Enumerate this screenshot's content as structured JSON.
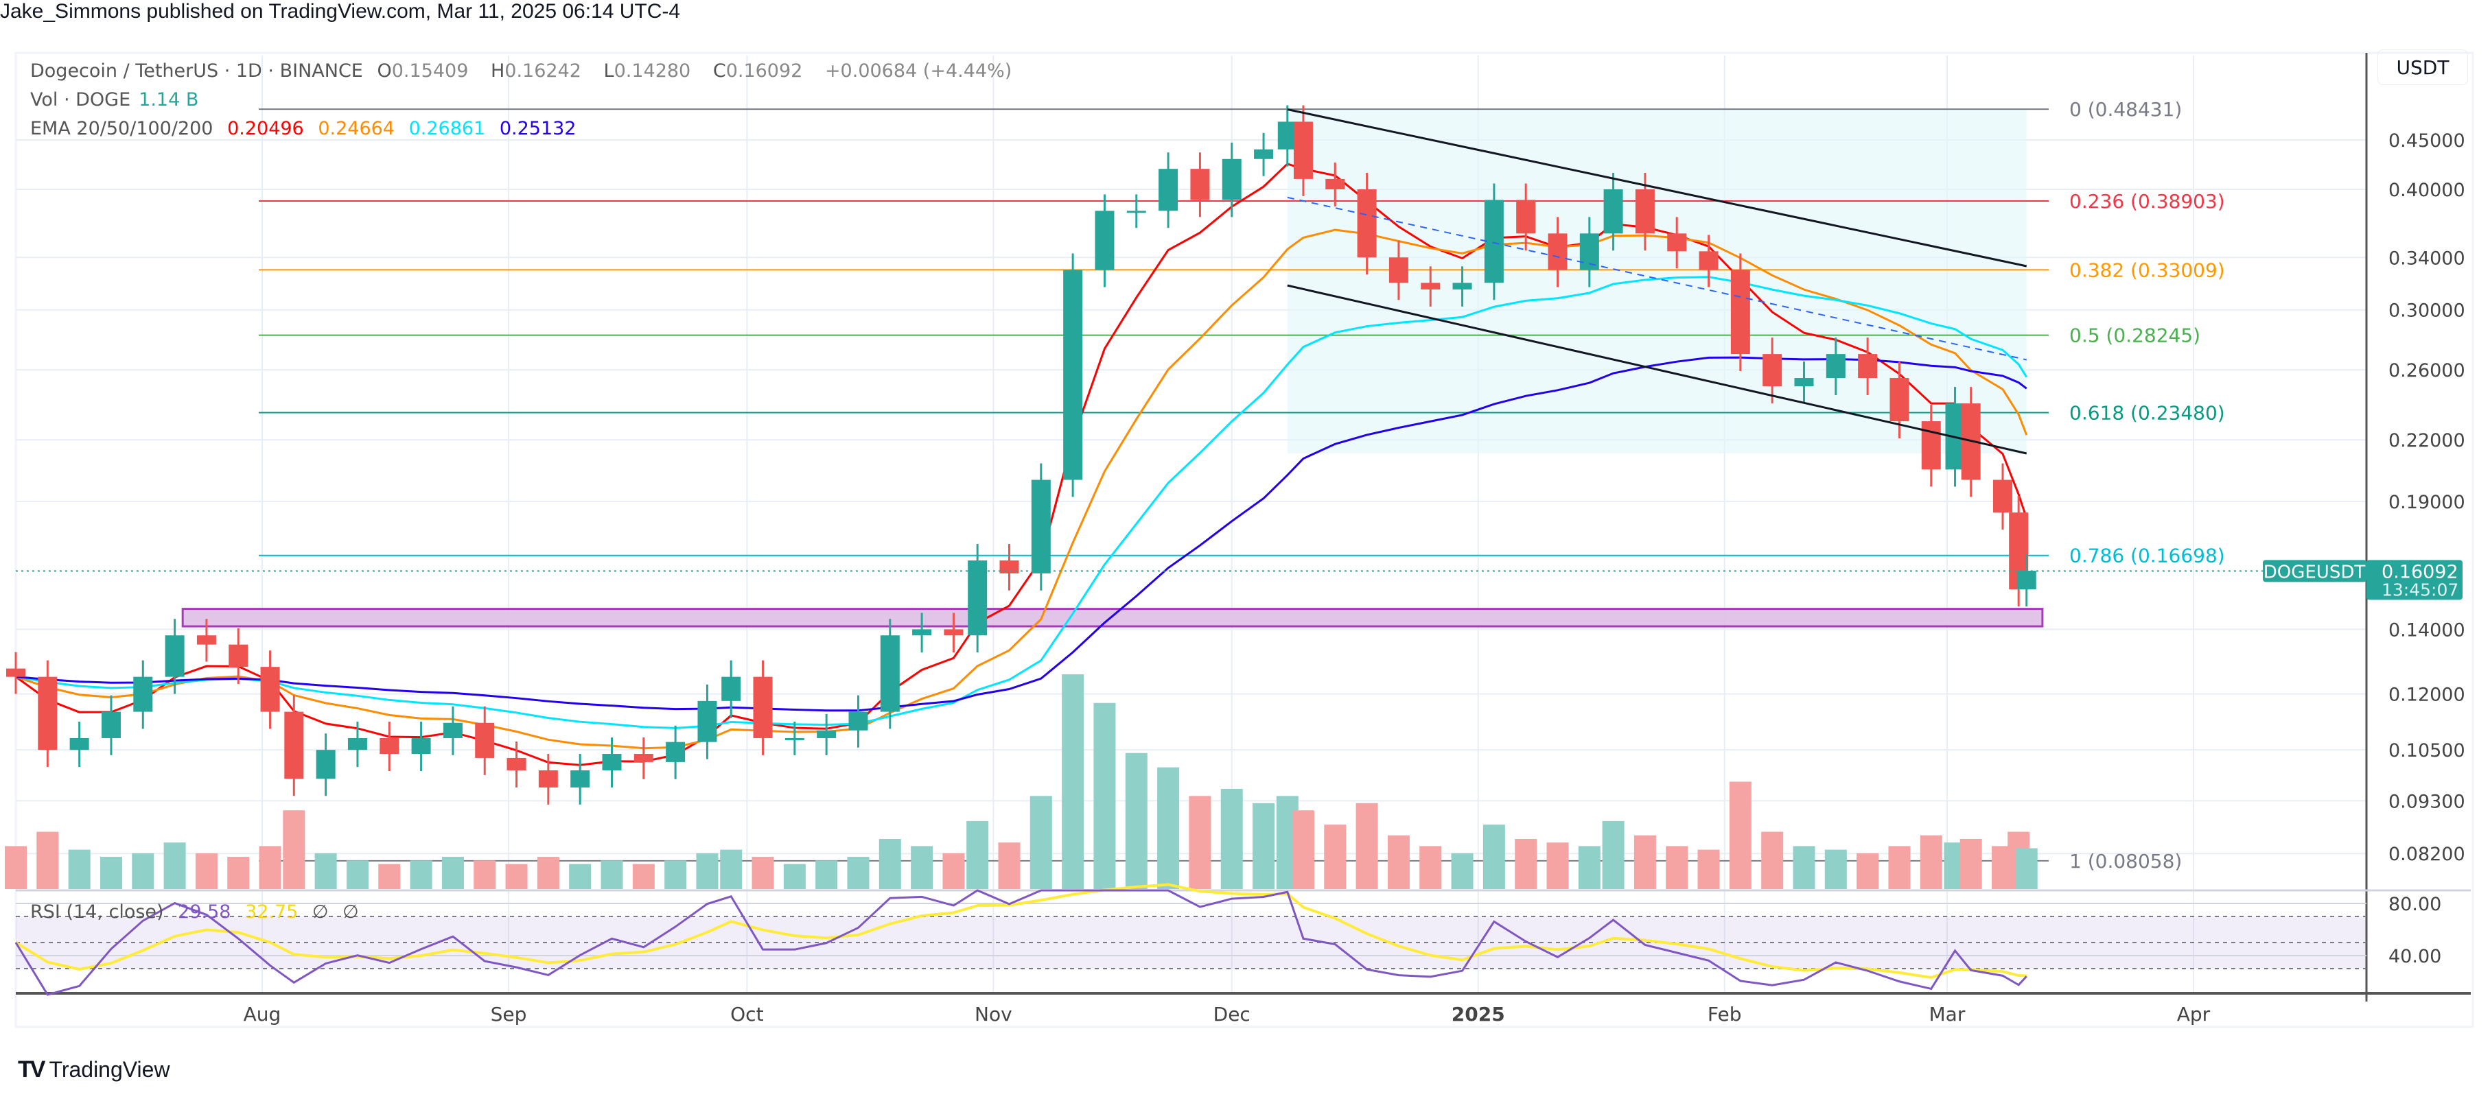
{
  "publisher": "Jake_Simmons published on TradingView.com, Mar 11, 2025 06:14 UTC-4",
  "legend": {
    "symbol": "Dogecoin / TetherUS · 1D · BINANCE",
    "o_label": "O",
    "o": "0.15409",
    "h_label": "H",
    "h": "0.16242",
    "l_label": "L",
    "l": "0.14280",
    "c_label": "C",
    "c": "0.16092",
    "change": "+0.00684 (+4.44%)",
    "vol_label": "Vol · DOGE",
    "vol": "1.14 B",
    "ema_label": "EMA 20/50/100/200",
    "ema20": "0.20496",
    "ema50": "0.24664",
    "ema100": "0.26861",
    "ema200": "0.25132",
    "rsi_label": "RSI (14, close)",
    "rsi": "29.58",
    "rsi_ma": "32.75",
    "rsi_extra1": "∅",
    "rsi_extra2": "∅"
  },
  "colors": {
    "up": "#26a69a",
    "down": "#ef5350",
    "ema20": "#ff0000",
    "ema50": "#ff8c00",
    "ema100": "#00e5ff",
    "ema200": "#2200ee",
    "rsi": "#7e57c2",
    "rsi_ma": "#ffeb3b",
    "support_box": "#9c27b0",
    "channel_fill": "#e0f7fa"
  },
  "price_axis": {
    "unit": "USDT",
    "ticks": [
      "0.45000",
      "0.40000",
      "0.34000",
      "0.30000",
      "0.26000",
      "0.22000",
      "0.19000",
      "0.14000",
      "0.12000",
      "0.10500",
      "0.09300",
      "0.08200"
    ]
  },
  "rsi_axis": {
    "ticks": [
      "80.00",
      "40.00"
    ]
  },
  "time_axis": {
    "ticks": [
      {
        "label": "Aug",
        "date": "2024-08-01"
      },
      {
        "label": "Sep",
        "date": "2024-09-01"
      },
      {
        "label": "Oct",
        "date": "2024-10-01"
      },
      {
        "label": "Nov",
        "date": "2024-11-01"
      },
      {
        "label": "Dec",
        "date": "2024-12-01"
      },
      {
        "label": "2025",
        "date": "2025-01-01"
      },
      {
        "label": "Feb",
        "date": "2025-02-01"
      },
      {
        "label": "Mar",
        "date": "2025-03-01"
      },
      {
        "label": "Apr",
        "date": "2025-04-01"
      }
    ]
  },
  "price_tag": {
    "symbol": "DOGEUSDT",
    "price": "0.16092",
    "countdown": "13:45:07"
  },
  "fib_levels": [
    {
      "label": "0 (0.48431)",
      "price": 0.48431,
      "color": "#787b86"
    },
    {
      "label": "0.236 (0.38903)",
      "price": 0.38903,
      "color": "#f23645"
    },
    {
      "label": "0.382 (0.33009)",
      "price": 0.33009,
      "color": "#ff9800"
    },
    {
      "label": "0.5 (0.28245)",
      "price": 0.28245,
      "color": "#4caf50"
    },
    {
      "label": "0.618 (0.23480)",
      "price": 0.2348,
      "color": "#089981"
    },
    {
      "label": "0.786 (0.16698)",
      "price": 0.16698,
      "color": "#00bcd4"
    },
    {
      "label": "1 (0.08058)",
      "price": 0.08058,
      "color": "#787b86"
    }
  ],
  "footer": {
    "brand": "TradingView"
  },
  "chart_data": {
    "type": "candlestick",
    "title": "Dogecoin / TetherUS · 1D · BINANCE",
    "scale": "log",
    "ylim": [
      0.075,
      0.52
    ],
    "grid": true,
    "closes": [
      [
        "2024-07-01",
        0.125
      ],
      [
        "2024-07-05",
        0.105
      ],
      [
        "2024-07-09",
        0.108
      ],
      [
        "2024-07-13",
        0.115
      ],
      [
        "2024-07-17",
        0.125
      ],
      [
        "2024-07-21",
        0.138
      ],
      [
        "2024-07-25",
        0.135
      ],
      [
        "2024-07-29",
        0.128
      ],
      [
        "2024-08-02",
        0.115
      ],
      [
        "2024-08-05",
        0.098
      ],
      [
        "2024-08-09",
        0.105
      ],
      [
        "2024-08-13",
        0.108
      ],
      [
        "2024-08-17",
        0.104
      ],
      [
        "2024-08-21",
        0.108
      ],
      [
        "2024-08-25",
        0.112
      ],
      [
        "2024-08-29",
        0.103
      ],
      [
        "2024-09-02",
        0.1
      ],
      [
        "2024-09-06",
        0.096
      ],
      [
        "2024-09-10",
        0.1
      ],
      [
        "2024-09-14",
        0.104
      ],
      [
        "2024-09-18",
        0.102
      ],
      [
        "2024-09-22",
        0.107
      ],
      [
        "2024-09-26",
        0.118
      ],
      [
        "2024-09-29",
        0.125
      ],
      [
        "2024-10-03",
        0.108
      ],
      [
        "2024-10-07",
        0.108
      ],
      [
        "2024-10-11",
        0.11
      ],
      [
        "2024-10-15",
        0.115
      ],
      [
        "2024-10-19",
        0.138
      ],
      [
        "2024-10-23",
        0.14
      ],
      [
        "2024-10-27",
        0.138
      ],
      [
        "2024-10-30",
        0.165
      ],
      [
        "2024-11-03",
        0.16
      ],
      [
        "2024-11-07",
        0.2
      ],
      [
        "2024-11-11",
        0.33
      ],
      [
        "2024-11-15",
        0.38
      ],
      [
        "2024-11-19",
        0.38
      ],
      [
        "2024-11-23",
        0.42
      ],
      [
        "2024-11-27",
        0.39
      ],
      [
        "2024-12-01",
        0.43
      ],
      [
        "2024-12-05",
        0.44
      ],
      [
        "2024-12-08",
        0.47
      ],
      [
        "2024-12-10",
        0.41
      ],
      [
        "2024-12-14",
        0.4
      ],
      [
        "2024-12-18",
        0.34
      ],
      [
        "2024-12-22",
        0.32
      ],
      [
        "2024-12-26",
        0.315
      ],
      [
        "2024-12-30",
        0.32
      ],
      [
        "2025-01-03",
        0.39
      ],
      [
        "2025-01-07",
        0.36
      ],
      [
        "2025-01-11",
        0.33
      ],
      [
        "2025-01-15",
        0.36
      ],
      [
        "2025-01-18",
        0.4
      ],
      [
        "2025-01-22",
        0.36
      ],
      [
        "2025-01-26",
        0.345
      ],
      [
        "2025-01-30",
        0.33
      ],
      [
        "2025-02-03",
        0.27
      ],
      [
        "2025-02-07",
        0.25
      ],
      [
        "2025-02-11",
        0.255
      ],
      [
        "2025-02-15",
        0.27
      ],
      [
        "2025-02-19",
        0.255
      ],
      [
        "2025-02-23",
        0.23
      ],
      [
        "2025-02-27",
        0.205
      ],
      [
        "2025-03-02",
        0.24
      ],
      [
        "2025-03-04",
        0.2
      ],
      [
        "2025-03-08",
        0.185
      ],
      [
        "2025-03-10",
        0.154
      ],
      [
        "2025-03-11",
        0.161
      ]
    ],
    "volume_b": [
      1.2,
      1.6,
      1.1,
      0.9,
      1.0,
      1.3,
      1.0,
      0.9,
      1.2,
      2.2,
      1.0,
      0.8,
      0.7,
      0.8,
      0.9,
      0.8,
      0.7,
      0.9,
      0.7,
      0.8,
      0.7,
      0.8,
      1.0,
      1.1,
      0.9,
      0.7,
      0.8,
      0.9,
      1.4,
      1.2,
      1.0,
      1.9,
      1.3,
      2.6,
      6.0,
      5.2,
      3.8,
      3.4,
      2.6,
      2.8,
      2.4,
      2.6,
      2.2,
      1.8,
      2.4,
      1.5,
      1.2,
      1.0,
      1.8,
      1.4,
      1.3,
      1.2,
      1.9,
      1.5,
      1.2,
      1.1,
      3.0,
      1.6,
      1.2,
      1.1,
      1.0,
      1.2,
      1.5,
      1.3,
      1.4,
      1.2,
      1.6,
      1.14
    ],
    "channel": {
      "upper": [
        [
          "2024-12-08",
          0.484
        ],
        [
          "2025-03-11",
          0.333
        ]
      ],
      "lower": [
        [
          "2024-12-08",
          0.318
        ],
        [
          "2025-03-11",
          0.213
        ]
      ]
    },
    "support_zone": {
      "from": "2024-07-22",
      "to": "2025-03-13",
      "low": 0.141,
      "high": 0.147
    }
  }
}
